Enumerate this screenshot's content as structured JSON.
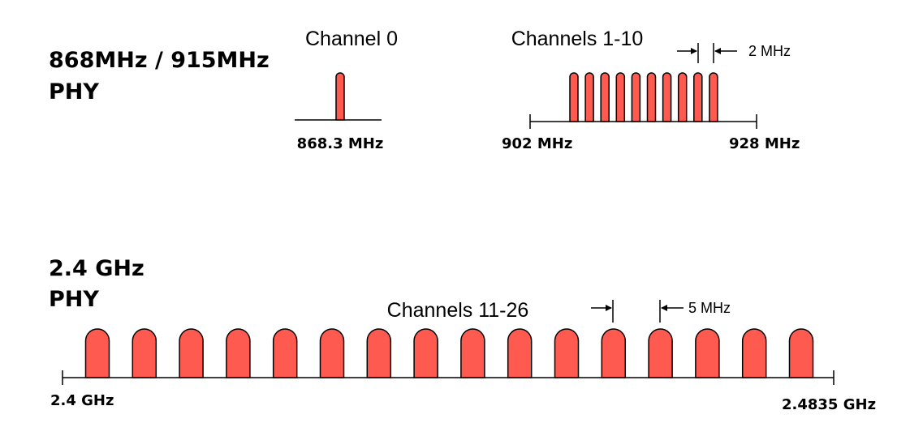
{
  "phy_900": {
    "title_line1": "868MHz / 915MHz",
    "title_line2": "PHY",
    "channel0": {
      "label": "Channel 0",
      "freq_label": "868.3 MHz",
      "count": 1
    },
    "channels_1_10": {
      "label": "Channels 1-10",
      "start_label": "902 MHz",
      "end_label": "928 MHz",
      "spacing_label": "2 MHz",
      "count": 10
    }
  },
  "phy_24": {
    "title_line1": "2.4 GHz",
    "title_line2": "PHY",
    "channels_label": "Channels 11-26",
    "spacing_label": "5 MHz",
    "start_label": "2.4 GHz",
    "end_label": "2.4835 GHz",
    "count": 16
  },
  "colors": {
    "channel_fill": "#ff5a4f",
    "outline": "#000000",
    "text": "#000000"
  }
}
